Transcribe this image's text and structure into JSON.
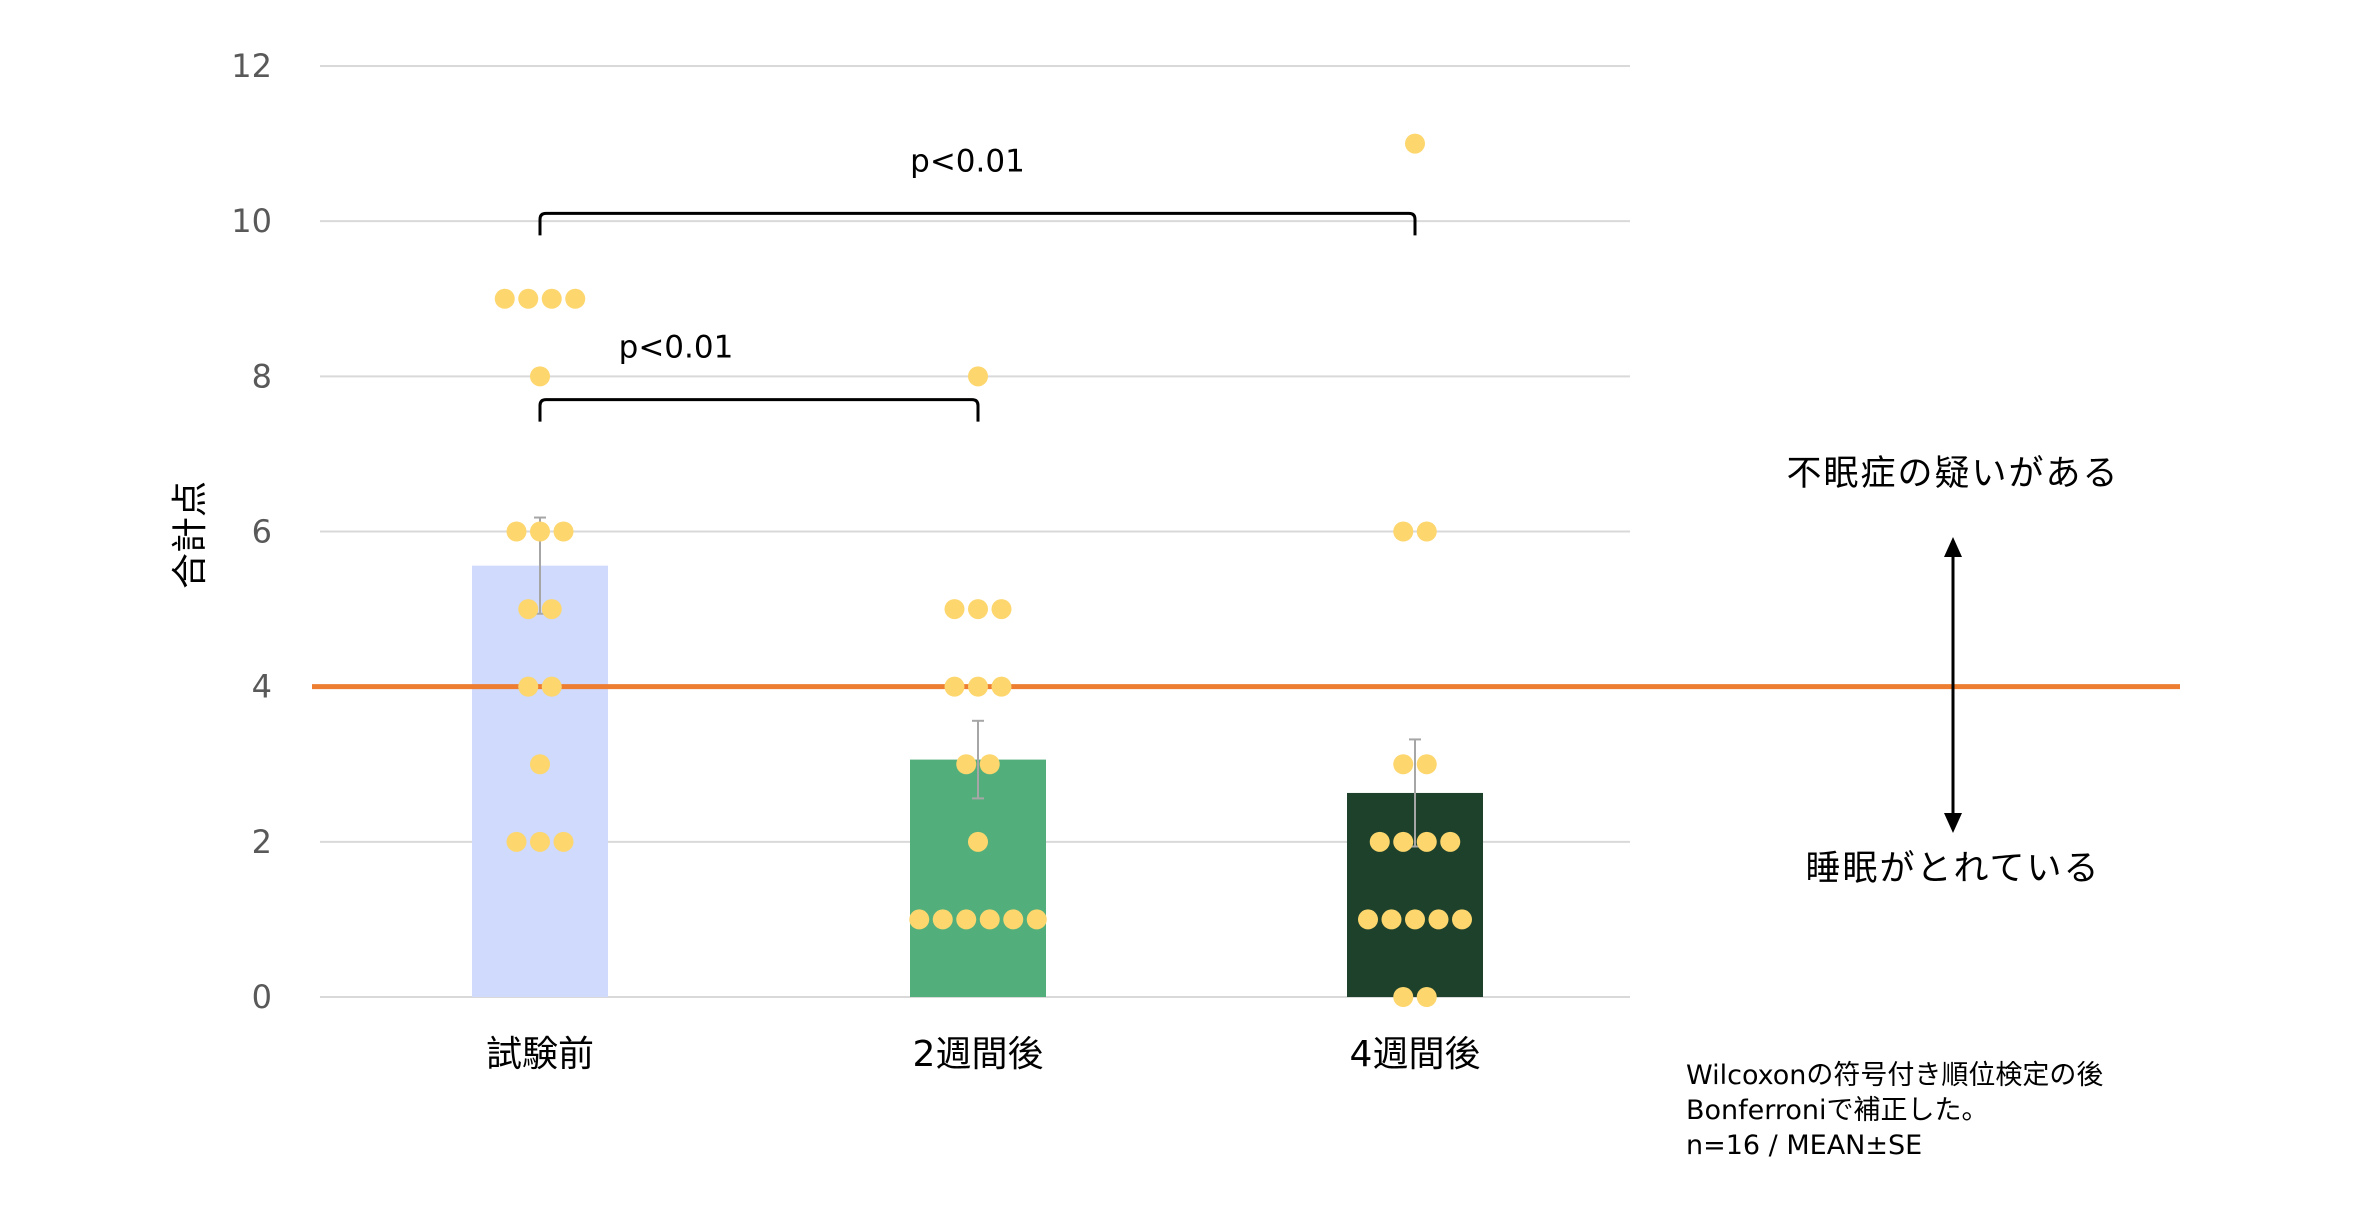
{
  "chart_data": {
    "type": "bar",
    "title": "",
    "xlabel": "",
    "ylabel": "合計点",
    "ylim": [
      0,
      12
    ],
    "yticks": [
      0,
      2,
      4,
      6,
      8,
      10,
      12
    ],
    "grid": true,
    "categories": [
      "試験前",
      "2週間後",
      "4週間後"
    ],
    "means": [
      5.56,
      3.06,
      2.63
    ],
    "se": [
      0.62,
      0.5,
      0.69
    ],
    "bar_colors": [
      "#cfdafc",
      "#52af7b",
      "#1e412c"
    ],
    "points": [
      [
        9,
        9,
        9,
        9,
        8,
        6,
        6,
        6,
        5,
        5,
        4,
        4,
        3,
        2,
        2,
        2
      ],
      [
        8,
        5,
        5,
        5,
        4,
        4,
        4,
        3,
        3,
        2,
        1,
        1,
        1,
        1,
        1,
        1
      ],
      [
        11,
        6,
        6,
        3,
        3,
        2,
        2,
        2,
        2,
        1,
        1,
        1,
        1,
        1,
        0,
        0
      ]
    ],
    "point_color": "#fdd66d",
    "reference_line": {
      "value": 4,
      "color": "#ed7d31"
    },
    "comparisons": [
      {
        "from": "試験前",
        "to": "2週間後",
        "label": "p<0.01"
      },
      {
        "from": "試験前",
        "to": "4週間後",
        "label": "p<0.01"
      }
    ],
    "annotations": {
      "above": "不眠症の疑いがある",
      "below": "睡眠がとれている"
    },
    "notes": [
      "Wilcoxonの符号付き順位検定の後",
      "Bonferroniで補正した。",
      "n=16 / MEAN±SE"
    ]
  }
}
